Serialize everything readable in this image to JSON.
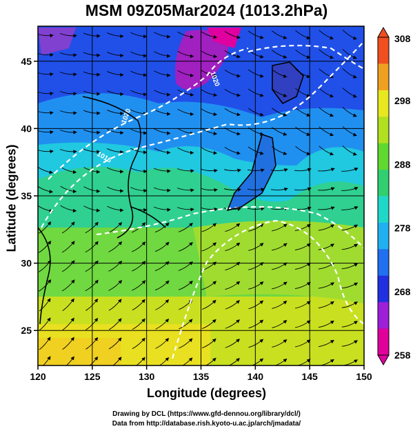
{
  "title": "MSM 09Z05Mar2024 (1013.2hPa)",
  "x_axis": {
    "label": "Longitude (degrees)",
    "ticks": [
      "120",
      "125",
      "130",
      "135",
      "140",
      "145",
      "150"
    ],
    "range": [
      120,
      150
    ]
  },
  "y_axis": {
    "label": "Latitude  (degrees)",
    "ticks": [
      "25",
      "30",
      "35",
      "40",
      "45"
    ],
    "range": [
      22.4,
      47.6
    ]
  },
  "colorbar": {
    "ticks": [
      "308",
      "298",
      "288",
      "278",
      "268",
      "258"
    ],
    "range": [
      258,
      308
    ],
    "colors": [
      "#e0009a",
      "#9b20d8",
      "#2030e0",
      "#2070f0",
      "#20b0f0",
      "#20d8c8",
      "#30d070",
      "#60d830",
      "#b0e020",
      "#e8e820",
      "#f0a020",
      "#f05020"
    ]
  },
  "isobars": [
    {
      "label": "1016"
    },
    {
      "label": "1020"
    },
    {
      "label": "1020"
    }
  ],
  "credits": {
    "line1": "Drawing by DCL (https://www.gfd-dennou.org/library/dcl/)",
    "line2": "Data from http://database.rish.kyoto-u.ac.jp/arch/jmadata/"
  }
}
